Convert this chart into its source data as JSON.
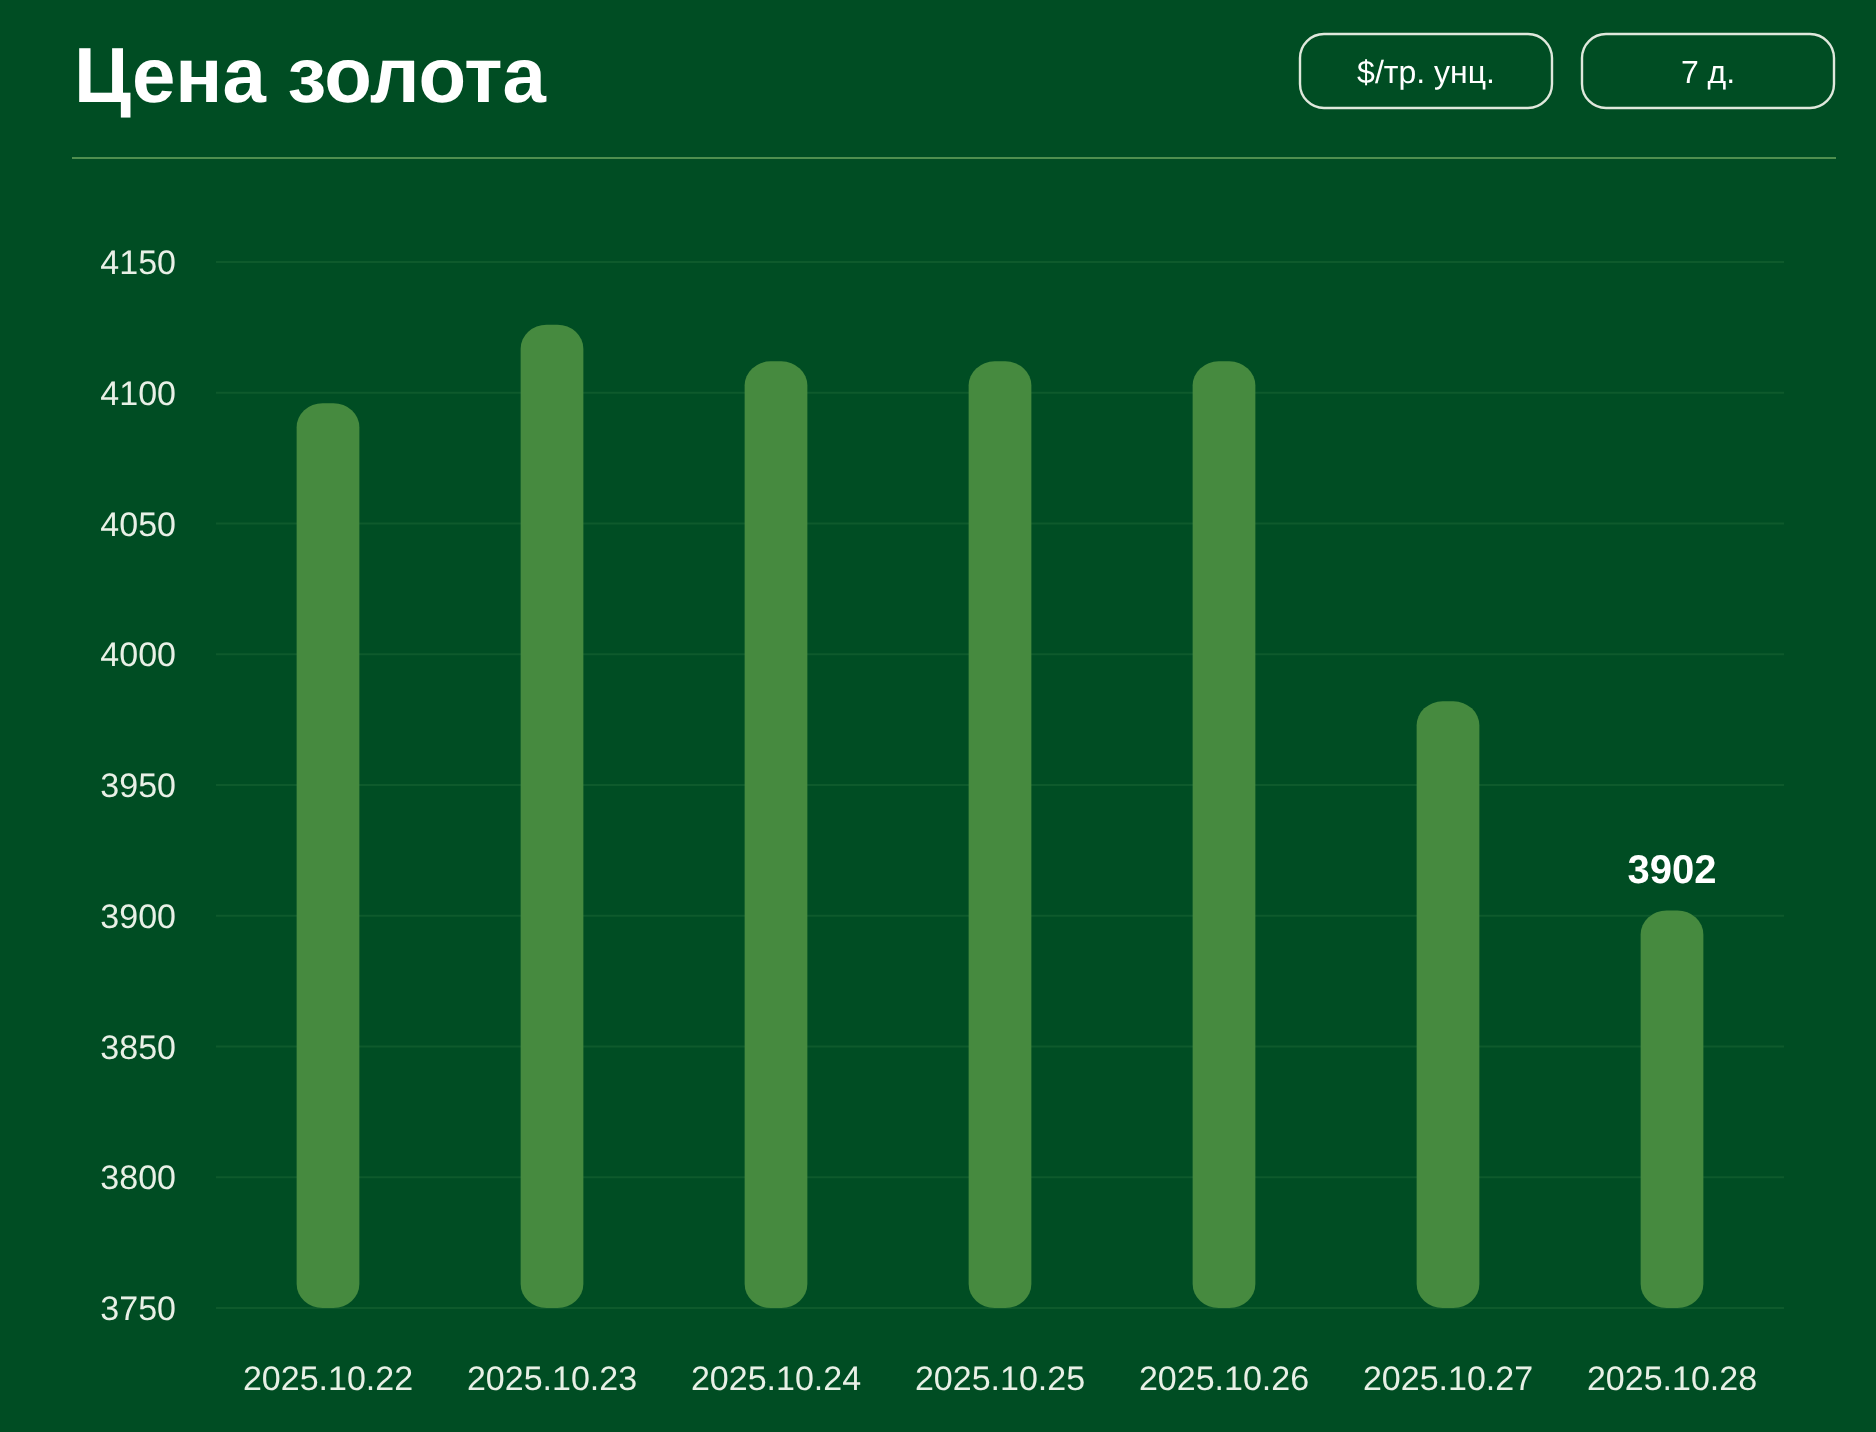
{
  "chart_data": {
    "type": "bar",
    "title": "Цена золота",
    "annotations": [
      "$/тр. унц.",
      "7 д."
    ],
    "categories": [
      "2025.10.22",
      "2025.10.23",
      "2025.10.24",
      "2025.10.25",
      "2025.10.26",
      "2025.10.27",
      "2025.10.28"
    ],
    "values": [
      4096,
      4126,
      4112,
      4112,
      4112,
      3982,
      3902
    ],
    "value_labels": [
      null,
      null,
      null,
      null,
      null,
      null,
      "3902"
    ],
    "color": "#468a3f",
    "ylim": [
      3750,
      4150
    ],
    "yticks": [
      3750,
      3800,
      3850,
      3900,
      3950,
      4000,
      4050,
      4100,
      4150
    ],
    "grid": "y"
  }
}
